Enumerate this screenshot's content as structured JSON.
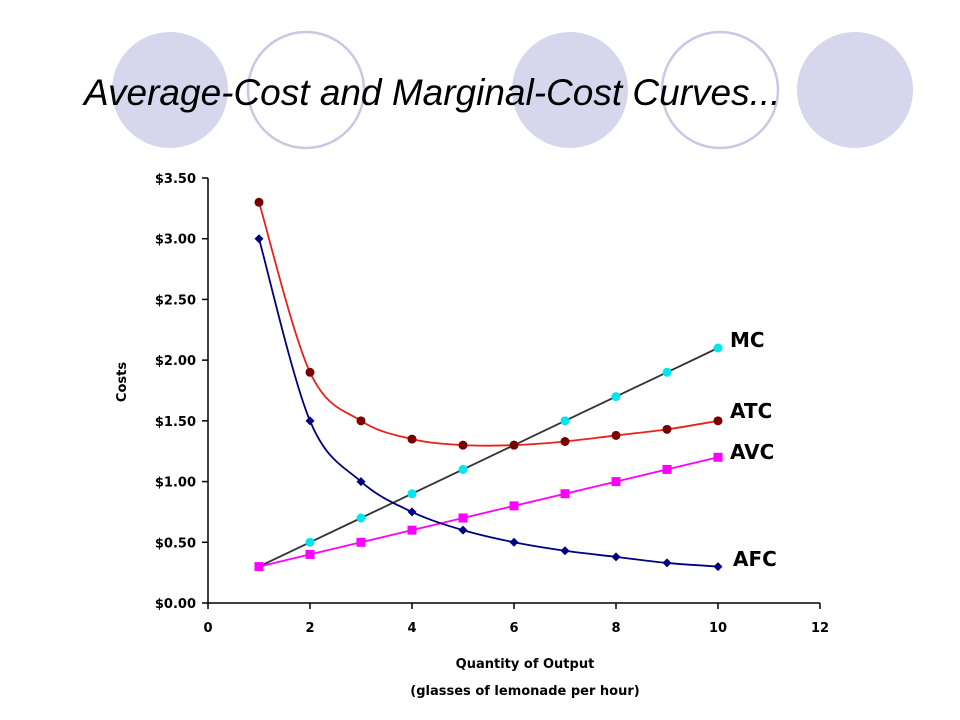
{
  "slide": {
    "title": "Average-Cost and Marginal-Cost Curves..."
  },
  "colors": {
    "circle_fill": "#d6d6ec",
    "circle_stroke": "#c8c8e4"
  },
  "chart_data": {
    "type": "line",
    "xlabel": "Quantity of Output",
    "xlabel2": "(glasses of lemonade per hour)",
    "ylabel": "Costs",
    "xlim": [
      0,
      12
    ],
    "ylim": [
      0,
      3.5
    ],
    "x_ticks": [
      "0",
      "2",
      "4",
      "6",
      "8",
      "10",
      "12"
    ],
    "y_ticks": [
      "$0.00",
      "$0.50",
      "$1.00",
      "$1.50",
      "$2.00",
      "$2.50",
      "$3.00",
      "$3.50"
    ],
    "x": [
      1,
      2,
      3,
      4,
      5,
      6,
      7,
      8,
      9,
      10
    ],
    "grid": false,
    "legend": "inline labels at right end of each line",
    "series": [
      {
        "name": "MC",
        "color": "#333333",
        "marker_color": "#00e6f0",
        "marker": "circle",
        "values": [
          0.3,
          0.5,
          0.7,
          0.9,
          1.1,
          1.3,
          1.5,
          1.7,
          1.9,
          2.1
        ]
      },
      {
        "name": "ATC",
        "color": "#e8221b",
        "marker_color": "#7a0000",
        "marker": "circle",
        "values": [
          3.3,
          1.9,
          1.5,
          1.35,
          1.3,
          1.3,
          1.33,
          1.38,
          1.43,
          1.5
        ]
      },
      {
        "name": "AVC",
        "color": "#ff00ff",
        "marker_color": "#ff00ff",
        "marker": "square",
        "values": [
          0.3,
          0.4,
          0.5,
          0.6,
          0.7,
          0.8,
          0.9,
          1.0,
          1.1,
          1.2
        ]
      },
      {
        "name": "AFC",
        "color": "#000080",
        "marker_color": "#000080",
        "marker": "diamond",
        "values": [
          3.0,
          1.5,
          1.0,
          0.75,
          0.6,
          0.5,
          0.43,
          0.38,
          0.33,
          0.3
        ]
      }
    ]
  }
}
